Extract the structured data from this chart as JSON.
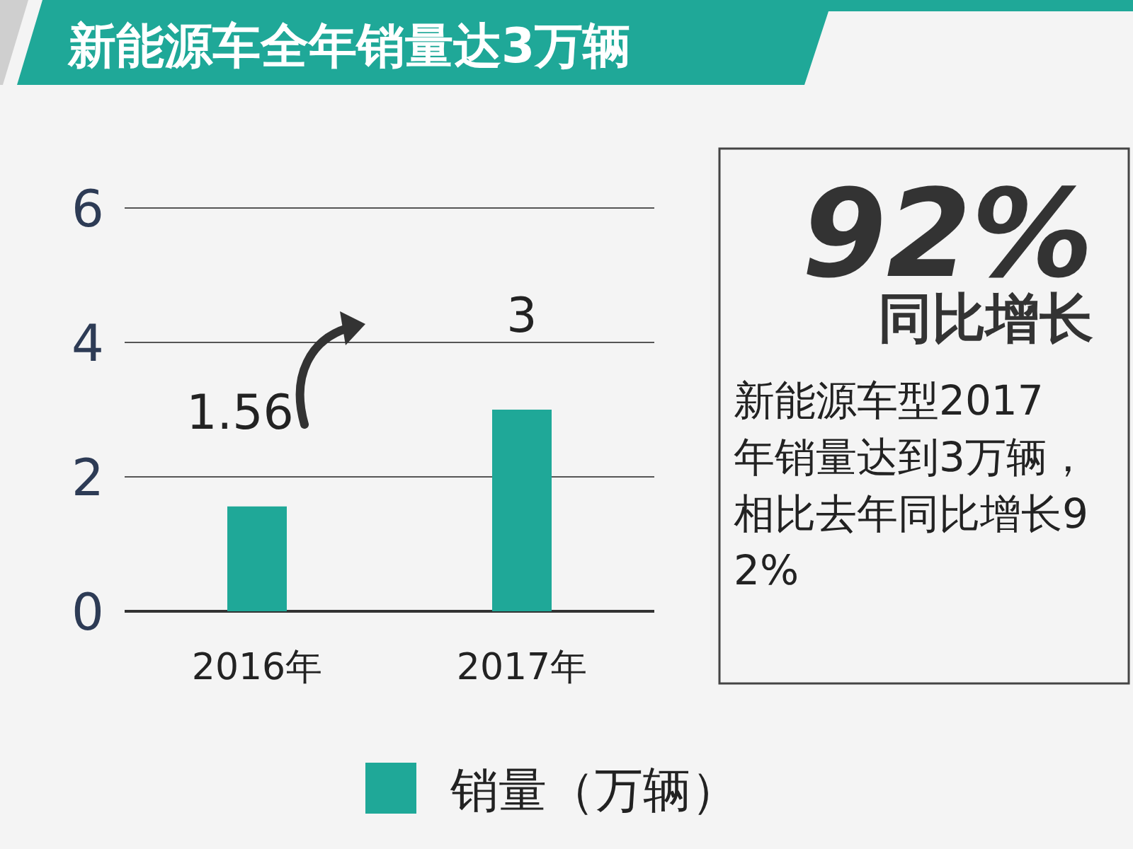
{
  "chart_data": {
    "type": "bar",
    "title": "新能源车全年销量达3万辆",
    "categories": [
      "2016年",
      "2017年"
    ],
    "series": [
      {
        "name": "销量（万辆）",
        "color": "#1fa898",
        "values": [
          1.56,
          3
        ]
      }
    ],
    "ylim": [
      0,
      6
    ],
    "yticks": [
      0,
      2,
      4,
      6
    ],
    "grid": "y",
    "legend": "bottom",
    "data_labels": true,
    "annotations": [
      "92%",
      "同比增长",
      "新能源车型2017年销量达到3万辆，相比去年同比增长92%"
    ]
  }
}
